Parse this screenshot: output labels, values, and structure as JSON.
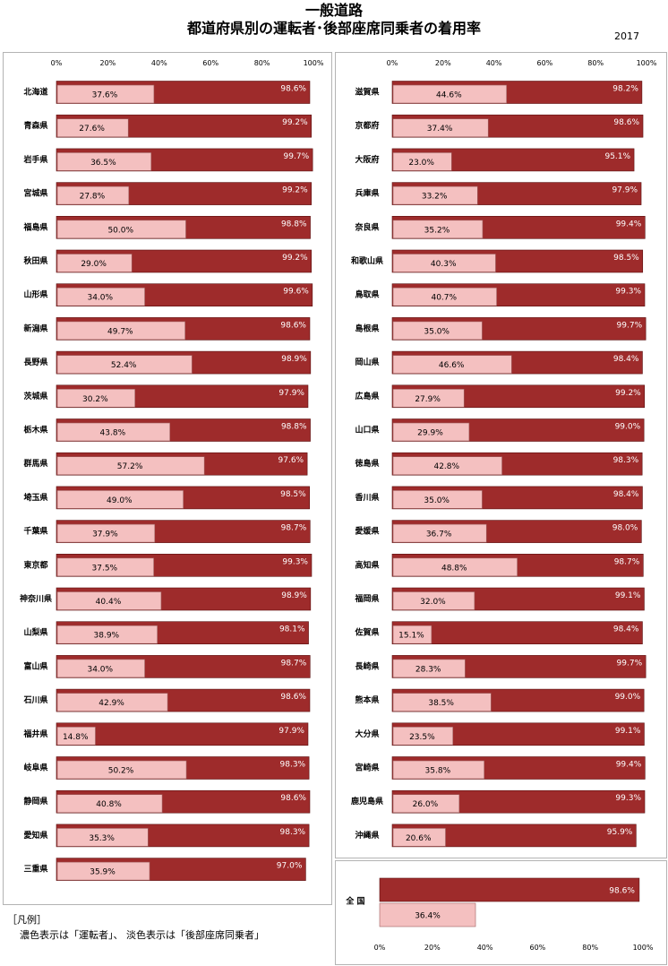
{
  "title_line1": "一般道路",
  "title_line2": "都道府県別の運転者･後部座席同乗者の着用率",
  "year": "2017",
  "legend": {
    "label": "［凡例］",
    "text": "濃色表示は「運転者」、 淡色表示は「後部座席同乗者」"
  },
  "colors": {
    "driver": "#9e2b2b",
    "rear": "#f4c0c0",
    "driver_edge": "#5a1010",
    "rear_edge": "#a06060"
  },
  "chart_data": [
    {
      "type": "bar",
      "orientation": "horizontal",
      "title": "",
      "xlim": [
        0,
        100
      ],
      "ticks": [
        "0%",
        "20%",
        "40%",
        "60%",
        "80%",
        "100%"
      ],
      "categories": [
        "北海道",
        "青森県",
        "岩手県",
        "宮城県",
        "福島県",
        "秋田県",
        "山形県",
        "新潟県",
        "長野県",
        "茨城県",
        "栃木県",
        "群馬県",
        "埼玉県",
        "千葉県",
        "東京都",
        "神奈川県",
        "山梨県",
        "富山県",
        "石川県",
        "福井県",
        "岐阜県",
        "静岡県",
        "愛知県",
        "三重県"
      ],
      "series": [
        {
          "name": "運転者",
          "values": [
            98.6,
            99.2,
            99.7,
            99.2,
            98.8,
            99.2,
            99.6,
            98.6,
            98.9,
            97.9,
            98.8,
            97.6,
            98.5,
            98.7,
            99.3,
            98.9,
            98.1,
            98.7,
            98.6,
            97.9,
            98.3,
            98.6,
            98.3,
            97.0
          ]
        },
        {
          "name": "後部座席同乗者",
          "values": [
            37.6,
            27.6,
            36.5,
            27.8,
            50.0,
            29.0,
            34.0,
            49.7,
            52.4,
            30.2,
            43.8,
            57.2,
            49.0,
            37.9,
            37.5,
            40.4,
            38.9,
            34.0,
            42.9,
            14.8,
            50.2,
            40.8,
            35.3,
            35.9
          ]
        }
      ]
    },
    {
      "type": "bar",
      "orientation": "horizontal",
      "title": "",
      "xlim": [
        0,
        100
      ],
      "ticks": [
        "0%",
        "20%",
        "40%",
        "60%",
        "80%",
        "100%"
      ],
      "categories": [
        "滋賀県",
        "京都府",
        "大阪府",
        "兵庫県",
        "奈良県",
        "和歌山県",
        "鳥取県",
        "島根県",
        "岡山県",
        "広島県",
        "山口県",
        "徳島県",
        "香川県",
        "愛媛県",
        "高知県",
        "福岡県",
        "佐賀県",
        "長崎県",
        "熊本県",
        "大分県",
        "宮崎県",
        "鹿児島県",
        "沖縄県"
      ],
      "series": [
        {
          "name": "運転者",
          "values": [
            98.2,
            98.6,
            95.1,
            97.9,
            99.4,
            98.5,
            99.3,
            99.7,
            98.4,
            99.2,
            99.0,
            98.3,
            98.4,
            98.0,
            98.7,
            99.1,
            98.4,
            99.7,
            99.0,
            99.1,
            99.4,
            99.3,
            95.9
          ]
        },
        {
          "name": "後部座席同乗者",
          "values": [
            44.6,
            37.4,
            23.0,
            33.2,
            35.2,
            40.3,
            40.7,
            35.0,
            46.6,
            27.9,
            29.9,
            42.8,
            35.0,
            36.7,
            48.8,
            32.0,
            15.1,
            28.3,
            38.5,
            23.5,
            35.8,
            26.0,
            20.6
          ]
        }
      ]
    },
    {
      "type": "bar",
      "orientation": "horizontal",
      "title": "",
      "xlim": [
        0,
        100
      ],
      "ticks": [
        "0%",
        "20%",
        "40%",
        "60%",
        "80%",
        "100%"
      ],
      "categories": [
        "全 国"
      ],
      "series": [
        {
          "name": "運転者",
          "values": [
            98.6
          ]
        },
        {
          "name": "後部座席同乗者",
          "values": [
            36.4
          ]
        }
      ]
    }
  ]
}
